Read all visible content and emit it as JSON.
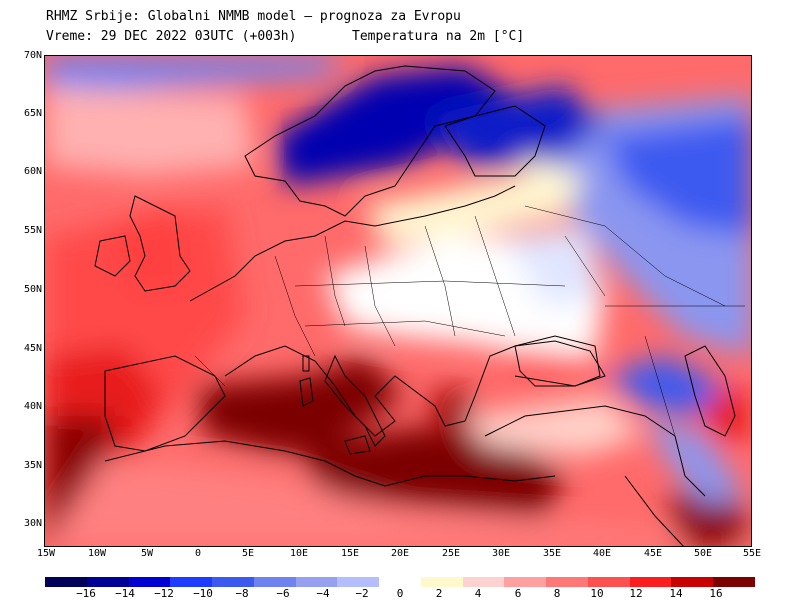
{
  "header": {
    "line1": "RHMZ Srbije: Globalni NMMB model — prognoza za Evropu",
    "line2": "Vreme: 29 DEC 2022 03UTC (+003h)",
    "line3": "Temperatura na 2m [°C]"
  },
  "axes": {
    "lat_labels": [
      "70N",
      "65N",
      "60N",
      "55N",
      "50N",
      "45N",
      "40N",
      "35N",
      "30N"
    ],
    "lon_labels": [
      "15W",
      "10W",
      "5W",
      "0",
      "5E",
      "10E",
      "15E",
      "20E",
      "25E",
      "30E",
      "35E",
      "40E",
      "45E",
      "50E",
      "55E"
    ]
  },
  "colorbar": {
    "labels": [
      "−16",
      "−14",
      "−12",
      "−10",
      "−8",
      "−6",
      "−4",
      "−2",
      "0",
      "2",
      "4",
      "6",
      "8",
      "10",
      "12",
      "14",
      "16"
    ],
    "colors": [
      "#00005a",
      "#000096",
      "#0000d2",
      "#1e3cff",
      "#3c5af0",
      "#6e82f0",
      "#96a0f0",
      "#b4beff",
      "#ffffff",
      "#fff8cc",
      "#ffd2d2",
      "#ffa0a0",
      "#ff7878",
      "#ff5050",
      "#fa1e1e",
      "#c80000",
      "#7d0000"
    ]
  }
}
